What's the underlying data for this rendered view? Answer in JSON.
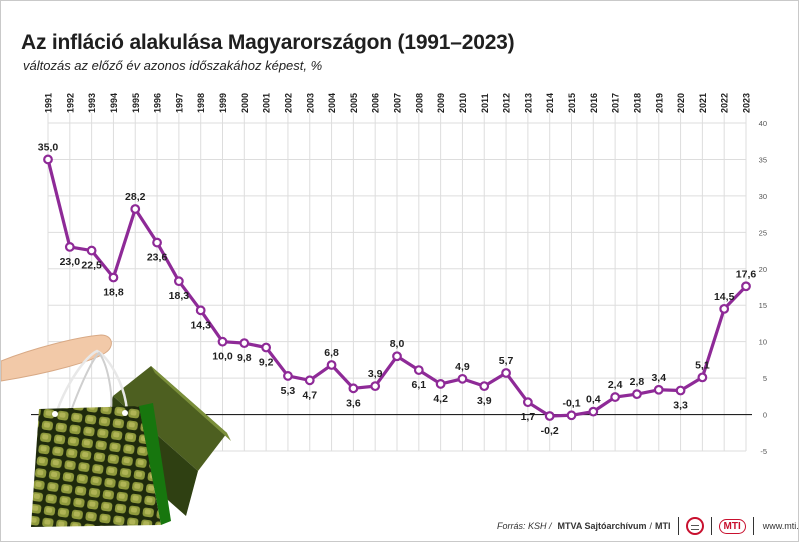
{
  "header": {
    "title": "Az infláció alakulása Magyarországon (1991–2023)",
    "subtitle": "változás az előző év azonos időszakához képest, %"
  },
  "footer": {
    "source_prefix": "Forrás: KSH /",
    "archive": "MTVA Sajtóarchívum",
    "separator": "/",
    "agency": "MTI",
    "url": "www.mti.hu",
    "logo_text": "MTI"
  },
  "colors": {
    "line": "#8e2a97",
    "point_fill": "#ffffff",
    "grid": "#dddddd",
    "zero_line": "#222222",
    "text": "#1f1f1f"
  },
  "chart_data": {
    "type": "line",
    "title": "Az infláció alakulása Magyarországon (1991–2023)",
    "subtitle": "változás az előző év azonos időszakához képest, %",
    "xlabel": "",
    "ylabel": "",
    "x": [
      "1991",
      "1992",
      "1993",
      "1994",
      "1995",
      "1996",
      "1997",
      "1998",
      "1999",
      "2000",
      "2001",
      "2002",
      "2003",
      "2004",
      "2005",
      "2006",
      "2007",
      "2008",
      "2009",
      "2010",
      "2011",
      "2012",
      "2013",
      "2014",
      "2015",
      "2016",
      "2017",
      "2018",
      "2019",
      "2020",
      "2021",
      "2022",
      "2023"
    ],
    "series": [
      {
        "values": [
          35.0,
          23.0,
          22.5,
          18.8,
          28.2,
          23.6,
          18.3,
          14.3,
          10.0,
          9.8,
          9.2,
          5.3,
          4.7,
          6.8,
          3.6,
          3.9,
          8.0,
          6.1,
          4.2,
          4.9,
          3.9,
          5.7,
          1.7,
          -0.2,
          -0.1,
          0.4,
          2.4,
          2.8,
          3.4,
          3.3,
          5.1,
          14.5,
          17.6
        ],
        "labels": [
          "35,0",
          "23,0",
          "22,5",
          "18,8",
          "28,2",
          "23,6",
          "18,3",
          "14,3",
          "10,0",
          "9,8",
          "9,2",
          "5,3",
          "4,7",
          "6,8",
          "3,6",
          "3,9",
          "8,0",
          "6,1",
          "4,2",
          "4,9",
          "3,9",
          "5,7",
          "1,7",
          "-0,2",
          "-0,1",
          "0,4",
          "2,4",
          "2,8",
          "3,4",
          "3,3",
          "5,1",
          "14,5",
          "17,6"
        ]
      }
    ],
    "ylim": [
      -5,
      40
    ],
    "yticks": [
      -5,
      0,
      5,
      10,
      15,
      20,
      25,
      30,
      35,
      40
    ],
    "ytick_labels": [
      "-5",
      "0",
      "5",
      "10",
      "15",
      "20",
      "25",
      "30",
      "35",
      "40"
    ],
    "grid": true,
    "y_axis_side": "right",
    "x_axis_side": "top"
  }
}
